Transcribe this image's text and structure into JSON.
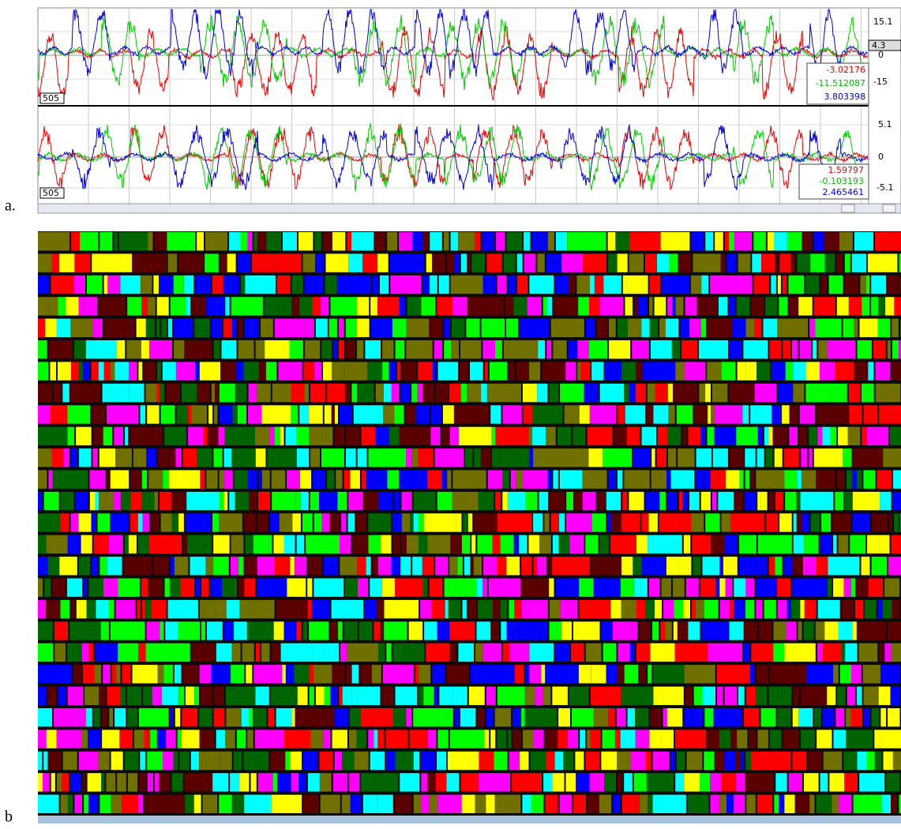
{
  "panel_a": {
    "label": "a.",
    "top_plot": {
      "axis_labels": [
        "15.1",
        "4.3",
        "0",
        "-15"
      ],
      "id_label": "505",
      "readout": [
        "-3.02176",
        "-11.512087",
        "3.803398"
      ]
    },
    "bottom_plot": {
      "axis_labels": [
        "5.1",
        "0",
        "-5.1"
      ],
      "id_label": "505",
      "readout": [
        "1.59797",
        "-0.103193",
        "2.465461"
      ]
    }
  },
  "panel_b": {
    "label": "b"
  }
}
